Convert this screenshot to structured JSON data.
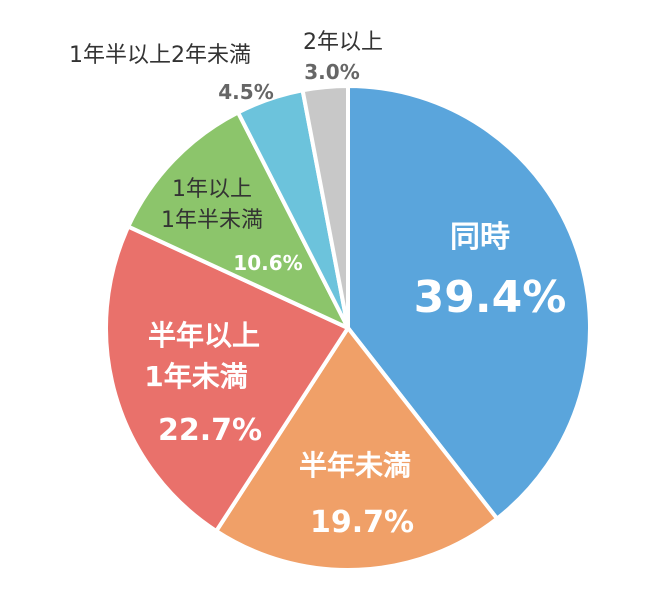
{
  "chart_data": {
    "type": "pie",
    "start_angle_deg": 0,
    "direction": "clockwise",
    "slices": [
      {
        "label_lines": [
          "同時"
        ],
        "value": 39.4,
        "value_label": "39.4%",
        "color": "#5aa5dc"
      },
      {
        "label_lines": [
          "半年未満"
        ],
        "value": 19.7,
        "value_label": "19.7%",
        "color": "#f0a068"
      },
      {
        "label_lines": [
          "半年以上",
          "1年未満"
        ],
        "value": 22.7,
        "value_label": "22.7%",
        "color": "#e9716b"
      },
      {
        "label_lines": [
          "1年以上",
          "1年半未満"
        ],
        "value": 10.6,
        "value_label": "10.6%",
        "color": "#8cc56b"
      },
      {
        "label_lines": [
          "1年半以上2年未満"
        ],
        "value": 4.5,
        "value_label": "4.5%",
        "color": "#6cc3dc"
      },
      {
        "label_lines": [
          "2年以上"
        ],
        "value": 3.0,
        "value_label": "3.0%",
        "color": "#c8c8c8"
      }
    ]
  }
}
